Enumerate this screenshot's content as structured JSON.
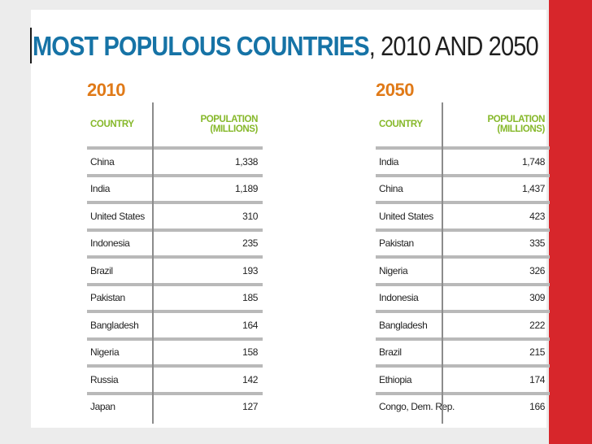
{
  "title": {
    "bold": "MOST POPULOUS COUNTRIES",
    "rest": ", 2010 AND 2050"
  },
  "colors": {
    "title_blue": "#1673a6",
    "year_orange": "#e07a18",
    "header_green": "#86b82a",
    "accent_red": "#d7262b"
  },
  "table_2010": {
    "year": "2010",
    "col_country": "COUNTRY",
    "col_population": "POPULATION (MILLIONS)",
    "rows": [
      {
        "country": "China",
        "population": "1,338"
      },
      {
        "country": "India",
        "population": "1,189"
      },
      {
        "country": "United States",
        "population": "310"
      },
      {
        "country": "Indonesia",
        "population": "235"
      },
      {
        "country": "Brazil",
        "population": "193"
      },
      {
        "country": "Pakistan",
        "population": "185"
      },
      {
        "country": "Bangladesh",
        "population": "164"
      },
      {
        "country": "Nigeria",
        "population": "158"
      },
      {
        "country": "Russia",
        "population": "142"
      },
      {
        "country": "Japan",
        "population": "127"
      }
    ]
  },
  "table_2050": {
    "year": "2050",
    "col_country": "COUNTRY",
    "col_population": "POPULATION (MILLIONS)",
    "rows": [
      {
        "country": "India",
        "population": "1,748"
      },
      {
        "country": "China",
        "population": "1,437"
      },
      {
        "country": "United States",
        "population": "423"
      },
      {
        "country": "Pakistan",
        "population": "335"
      },
      {
        "country": "Nigeria",
        "population": "326"
      },
      {
        "country": "Indonesia",
        "population": "309"
      },
      {
        "country": "Bangladesh",
        "population": "222"
      },
      {
        "country": "Brazil",
        "population": "215"
      },
      {
        "country": "Ethiopia",
        "population": "174"
      },
      {
        "country": "Congo, Dem. Rep.",
        "population": "166"
      }
    ]
  }
}
